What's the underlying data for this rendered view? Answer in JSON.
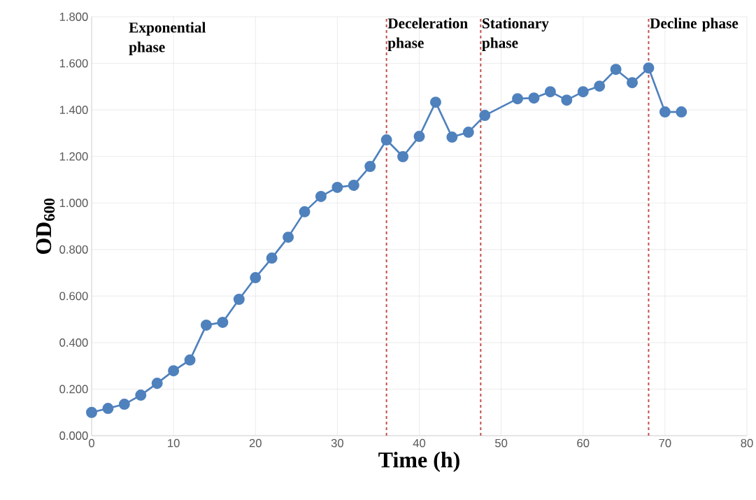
{
  "chart_data": {
    "type": "line",
    "xlabel": "Time (h)",
    "ylabel": "OD$_{600}$",
    "x": [
      0,
      2,
      4,
      6,
      8,
      10,
      12,
      14,
      16,
      18,
      20,
      22,
      24,
      26,
      28,
      30,
      32,
      34,
      36,
      38,
      40,
      42,
      44,
      46,
      48,
      52,
      54,
      56,
      58,
      60,
      62,
      64,
      66,
      68,
      70,
      72
    ],
    "series": [
      {
        "color": "#4f81bd",
        "values": [
          0.1,
          0.117,
          0.135,
          0.174,
          0.225,
          0.279,
          0.325,
          0.475,
          0.487,
          0.586,
          0.679,
          0.763,
          0.853,
          0.962,
          1.028,
          1.067,
          1.076,
          1.157,
          1.271,
          1.199,
          1.286,
          1.433,
          1.283,
          1.304,
          1.376,
          1.448,
          1.451,
          1.478,
          1.442,
          1.478,
          1.502,
          1.574,
          1.517,
          1.58,
          1.391,
          1.391
        ]
      }
    ],
    "xlim": [
      0,
      80
    ],
    "xticks": [
      0,
      10,
      20,
      30,
      40,
      50,
      60,
      70,
      80
    ],
    "ylim": [
      0,
      1.8
    ],
    "yticks": [
      {
        "value": 0,
        "label": "0.000"
      },
      {
        "value": 0.2,
        "label": "0.200"
      },
      {
        "value": 0.4,
        "label": "0.400"
      },
      {
        "value": 0.6,
        "label": "0.600"
      },
      {
        "value": 0.8,
        "label": "0.800"
      },
      {
        "value": 1.0,
        "label": "1.000"
      },
      {
        "value": 1.2,
        "label": "1.200"
      },
      {
        "value": 1.4,
        "label": "1.400"
      },
      {
        "value": 1.6,
        "label": "1.600"
      },
      {
        "value": 1.8,
        "label": "1.800"
      }
    ],
    "grid": true,
    "marker": "circle",
    "line_style": "solid",
    "ref_lines": [
      {
        "axis": "x",
        "value": 36,
        "label": "Deceleration phase",
        "color": "#c0504d",
        "line_style": "dashed"
      },
      {
        "axis": "x",
        "value": 47.5,
        "label": "Stationary phase",
        "color": "#c0504d",
        "line_style": "dashed"
      },
      {
        "axis": "x",
        "value": 68,
        "label": "Decline phase",
        "color": "#c0504d",
        "line_style": "dashed"
      }
    ],
    "annotations": [
      "Exponential phase"
    ]
  }
}
